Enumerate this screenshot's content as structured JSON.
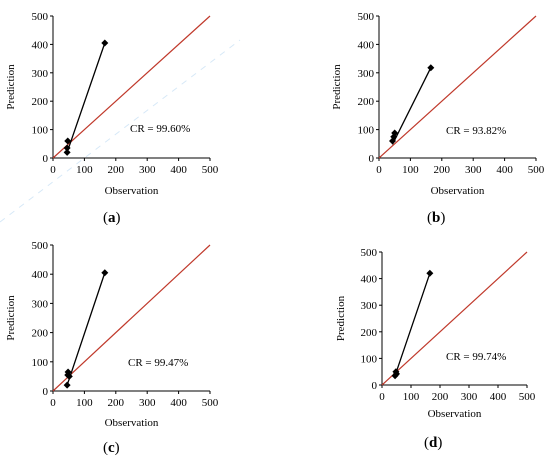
{
  "chart_data": [
    {
      "type": "scatter",
      "panel": "a",
      "xlabel": "Observation",
      "ylabel": "Prediction",
      "xlim": [
        0,
        500
      ],
      "ylim": [
        0,
        500
      ],
      "x_ticks": [
        "0",
        "100",
        "200",
        "300",
        "400",
        "500"
      ],
      "y_ticks": [
        "0",
        "100",
        "200",
        "300",
        "400",
        "500"
      ],
      "points": [
        [
          45,
          20
        ],
        [
          45,
          35
        ],
        [
          47,
          60
        ],
        [
          165,
          405
        ]
      ],
      "fit_line": [
        [
          45,
          20
        ],
        [
          165,
          405
        ]
      ],
      "reference_line": [
        [
          0,
          0
        ],
        [
          500,
          500
        ]
      ],
      "annotation": "CR = 99.60%",
      "caption_letter": "a"
    },
    {
      "type": "scatter",
      "panel": "b",
      "xlabel": "Observation",
      "ylabel": "Prediction",
      "xlim": [
        0,
        500
      ],
      "ylim": [
        0,
        500
      ],
      "x_ticks": [
        "0",
        "100",
        "200",
        "300",
        "400",
        "500"
      ],
      "y_ticks": [
        "0",
        "100",
        "200",
        "300",
        "400",
        "500"
      ],
      "points": [
        [
          43,
          60
        ],
        [
          47,
          75
        ],
        [
          50,
          88
        ],
        [
          165,
          318
        ]
      ],
      "fit_line": [
        [
          43,
          48
        ],
        [
          165,
          318
        ]
      ],
      "reference_line": [
        [
          0,
          0
        ],
        [
          500,
          500
        ]
      ],
      "annotation": "CR = 93.82%",
      "caption_letter": "b"
    },
    {
      "type": "scatter",
      "panel": "c",
      "xlabel": "Observation",
      "ylabel": "Prediction",
      "xlim": [
        0,
        500
      ],
      "ylim": [
        0,
        500
      ],
      "x_ticks": [
        "0",
        "100",
        "200",
        "300",
        "400",
        "500"
      ],
      "y_ticks": [
        "0",
        "100",
        "200",
        "300",
        "400",
        "500"
      ],
      "points": [
        [
          45,
          20
        ],
        [
          47,
          55
        ],
        [
          48,
          65
        ],
        [
          52,
          50
        ],
        [
          165,
          405
        ]
      ],
      "fit_line": [
        [
          45,
          20
        ],
        [
          165,
          405
        ]
      ],
      "reference_line": [
        [
          0,
          0
        ],
        [
          500,
          500
        ]
      ],
      "annotation": "CR = 99.47%",
      "caption_letter": "c"
    },
    {
      "type": "scatter",
      "panel": "d",
      "xlabel": "Observation",
      "ylabel": "Prediction",
      "xlim": [
        0,
        500
      ],
      "ylim": [
        0,
        500
      ],
      "x_ticks": [
        "0",
        "100",
        "200",
        "300",
        "400",
        "500"
      ],
      "y_ticks": [
        "0",
        "100",
        "200",
        "300",
        "400",
        "500"
      ],
      "points": [
        [
          45,
          35
        ],
        [
          48,
          50
        ],
        [
          50,
          42
        ],
        [
          165,
          420
        ]
      ],
      "fit_line": [
        [
          45,
          35
        ],
        [
          165,
          420
        ]
      ],
      "reference_line": [
        [
          0,
          0
        ],
        [
          500,
          500
        ]
      ],
      "annotation": "CR = 99.74%",
      "caption_letter": "d"
    }
  ],
  "colors": {
    "reference_line": "#c0392b",
    "fit_line": "#000000",
    "marker": "#000000",
    "axis": "#000000",
    "faint_diagonal": "#cfe3f5"
  }
}
